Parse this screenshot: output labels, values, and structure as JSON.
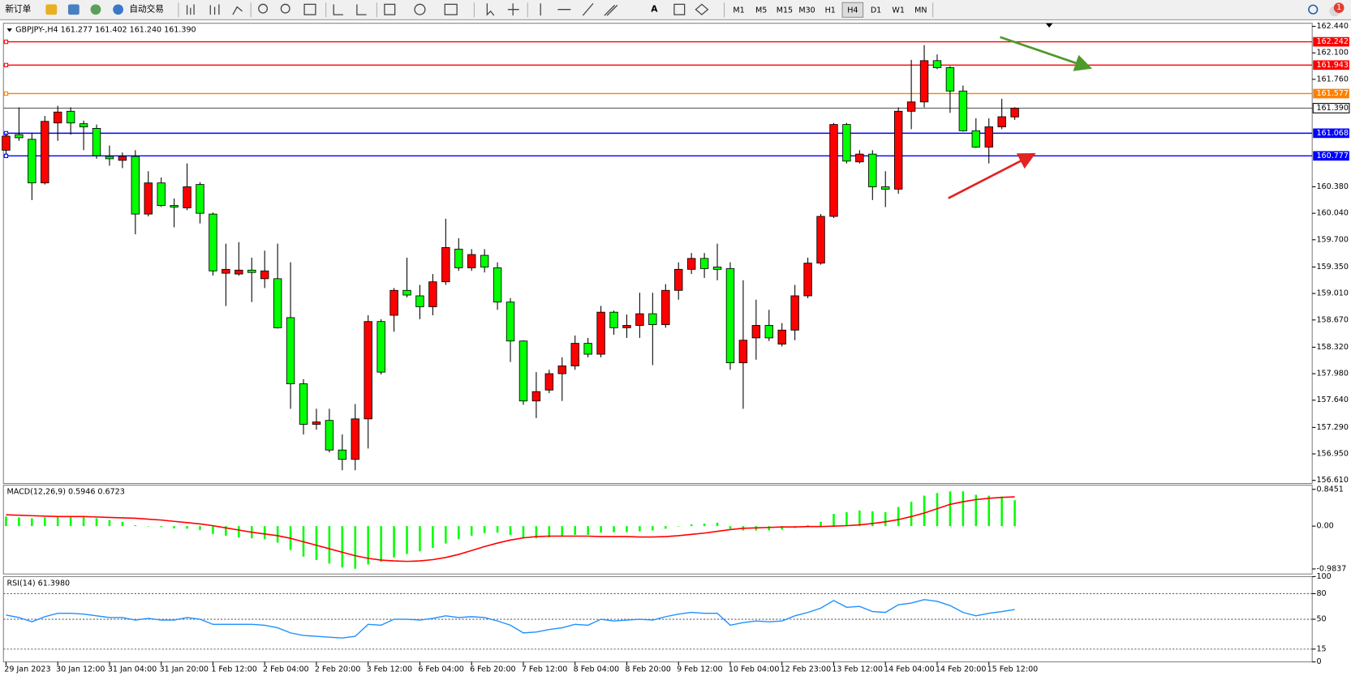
{
  "toolbar": {
    "new_order": "新订单",
    "auto_trading": "自动交易",
    "text_tool": "A",
    "timeframes": [
      "M1",
      "M5",
      "M15",
      "M30",
      "H1",
      "H4",
      "D1",
      "W1",
      "MN"
    ],
    "active_timeframe": "H4",
    "notification": "1"
  },
  "chart_data": [
    {
      "type": "candlestick",
      "header": "GBPJPY-,H4 161.277 161.402 161.240 161.390",
      "categories": [
        "29 Jan 2023",
        null,
        null,
        null,
        "30 Jan 12:00",
        null,
        null,
        null,
        "31 Jan 04:00",
        null,
        null,
        null,
        "31 Jan 20:00",
        null,
        null,
        null,
        "1 Feb 12:00",
        null,
        null,
        null,
        "2 Feb 04:00",
        null,
        null,
        null,
        "2 Feb 20:00",
        null,
        null,
        null,
        "3 Feb 12:00",
        null,
        null,
        null,
        "6 Feb 04:00",
        null,
        null,
        null,
        "6 Feb 20:00",
        null,
        null,
        null,
        "7 Feb 12:00",
        null,
        null,
        null,
        "8 Feb 04:00",
        null,
        null,
        null,
        "8 Feb 20:00",
        null,
        null,
        null,
        "9 Feb 12:00",
        null,
        null,
        null,
        "10 Feb 04:00",
        null,
        null,
        null,
        "12 Feb 23:00",
        null,
        null,
        null,
        "13 Feb 12:00",
        null,
        null,
        null,
        "14 Feb 04:00",
        null,
        null,
        null,
        "14 Feb 20:00",
        null,
        null,
        null,
        "15 Feb 12:00",
        null,
        null
      ],
      "open": [
        160.85,
        161.05,
        160.99,
        160.43,
        161.2,
        161.35,
        161.19,
        161.13,
        160.77,
        160.72,
        160.77,
        160.03,
        160.43,
        160.14,
        160.11,
        160.41,
        160.03,
        159.27,
        159.26,
        159.31,
        159.2,
        159.2,
        158.7,
        157.85,
        157.33,
        157.38,
        157.0,
        156.88,
        157.4,
        158.65,
        158.73,
        159.05,
        158.98,
        158.84,
        159.16,
        159.58,
        159.34,
        159.5,
        159.34,
        158.9,
        158.4,
        157.63,
        157.77,
        157.98,
        158.08,
        158.37,
        158.23,
        158.77,
        158.57,
        158.6,
        158.75,
        158.61,
        159.05,
        159.32,
        159.46,
        159.35,
        159.33,
        158.12,
        158.44,
        158.6,
        158.36,
        158.54,
        158.98,
        159.4,
        160.0,
        161.18,
        160.7,
        160.8,
        160.38,
        160.35,
        161.35,
        161.47,
        162.0,
        161.91,
        161.61,
        161.1,
        160.89,
        161.15,
        161.277
      ],
      "high": [
        161.07,
        161.4,
        161.07,
        161.29,
        161.42,
        161.4,
        161.23,
        161.18,
        160.91,
        160.82,
        160.85,
        160.58,
        160.5,
        160.23,
        160.68,
        160.44,
        160.05,
        159.65,
        159.67,
        159.47,
        159.56,
        159.65,
        159.41,
        157.91,
        157.53,
        157.53,
        157.2,
        157.59,
        158.73,
        158.68,
        159.08,
        159.47,
        159.12,
        159.26,
        159.97,
        159.72,
        159.58,
        159.58,
        159.41,
        158.95,
        158.41,
        158.0,
        158.03,
        158.19,
        158.47,
        158.44,
        158.85,
        158.79,
        158.74,
        159.02,
        159.02,
        159.13,
        159.41,
        159.53,
        159.53,
        159.65,
        159.41,
        159.18,
        158.93,
        158.8,
        158.63,
        159.12,
        159.47,
        160.03,
        161.2,
        161.2,
        160.85,
        160.85,
        160.58,
        161.4,
        162.01,
        162.2,
        162.08,
        161.93,
        161.68,
        161.26,
        161.26,
        161.51,
        161.402
      ],
      "low": [
        160.8,
        160.97,
        160.21,
        160.41,
        160.97,
        161.05,
        160.85,
        160.74,
        160.65,
        160.62,
        159.77,
        160.0,
        160.12,
        159.86,
        160.08,
        159.91,
        159.24,
        158.85,
        159.24,
        158.9,
        159.08,
        158.56,
        157.53,
        157.2,
        157.26,
        156.97,
        156.74,
        156.74,
        157.02,
        157.97,
        158.52,
        158.96,
        158.68,
        158.73,
        159.12,
        159.3,
        159.3,
        159.28,
        158.8,
        158.13,
        157.58,
        157.41,
        157.73,
        157.63,
        158.03,
        158.19,
        158.19,
        158.48,
        158.44,
        158.44,
        158.09,
        158.57,
        158.93,
        159.26,
        159.21,
        159.18,
        158.03,
        157.53,
        158.16,
        158.4,
        158.33,
        158.41,
        158.95,
        159.38,
        159.98,
        160.68,
        160.68,
        160.21,
        160.12,
        160.29,
        161.12,
        161.4,
        161.89,
        161.33,
        161.09,
        160.88,
        160.68,
        161.12,
        161.24
      ],
      "close": [
        161.03,
        161.01,
        160.43,
        161.22,
        161.34,
        161.2,
        161.15,
        160.78,
        160.74,
        160.77,
        160.03,
        160.43,
        160.14,
        160.12,
        160.38,
        160.04,
        159.3,
        159.32,
        159.31,
        159.28,
        159.3,
        158.57,
        157.85,
        157.33,
        157.36,
        157.0,
        156.88,
        157.4,
        158.65,
        158.0,
        159.05,
        158.99,
        158.84,
        159.16,
        159.6,
        159.34,
        159.51,
        159.35,
        158.9,
        158.4,
        157.63,
        157.75,
        157.98,
        158.08,
        158.37,
        158.23,
        158.77,
        158.57,
        158.6,
        158.75,
        158.61,
        159.05,
        159.32,
        159.46,
        159.33,
        159.32,
        158.12,
        158.41,
        158.6,
        158.44,
        158.54,
        158.98,
        159.4,
        160.0,
        161.18,
        160.71,
        160.8,
        160.38,
        160.35,
        161.35,
        161.47,
        162.0,
        161.91,
        161.61,
        161.1,
        160.89,
        161.15,
        161.28,
        161.39
      ],
      "up_color": "#ff0000",
      "down_color": "#00ff00",
      "outline_color": "#000000",
      "ylim": [
        156.57,
        162.48
      ],
      "yticks": [
        {
          "value": 162.44,
          "label": "162.440"
        },
        {
          "value": 162.1,
          "label": "162.100"
        },
        {
          "value": 161.76,
          "label": "161.760"
        },
        {
          "value": 160.38,
          "label": "160.380"
        },
        {
          "value": 160.04,
          "label": "160.040"
        },
        {
          "value": 159.7,
          "label": "159.700"
        },
        {
          "value": 159.35,
          "label": "159.350"
        },
        {
          "value": 159.01,
          "label": "159.010"
        },
        {
          "value": 158.67,
          "label": "158.670"
        },
        {
          "value": 158.32,
          "label": "158.320"
        },
        {
          "value": 157.98,
          "label": "157.980"
        },
        {
          "value": 157.64,
          "label": "157.640"
        },
        {
          "value": 157.29,
          "label": "157.290"
        },
        {
          "value": 156.95,
          "label": "156.950"
        },
        {
          "value": 156.61,
          "label": "156.610"
        }
      ],
      "levels": [
        {
          "value": 162.242,
          "color": "#ff0000"
        },
        {
          "value": 161.943,
          "color": "#ff0000"
        },
        {
          "value": 161.577,
          "color": "#ff8000"
        },
        {
          "value": 161.068,
          "color": "#0000ff"
        },
        {
          "value": 160.777,
          "color": "#0000ff"
        }
      ],
      "last_price": {
        "value": 161.39,
        "label": "161.390"
      }
    },
    {
      "type": "macd",
      "title": "MACD(12,26,9) 0.5946 0.6723",
      "histogram": {
        "color": "#00ff00",
        "values": [
          0.22,
          0.2,
          0.18,
          0.2,
          0.22,
          0.23,
          0.22,
          0.18,
          0.14,
          0.1,
          0.02,
          0.0,
          -0.02,
          -0.05,
          -0.06,
          -0.09,
          -0.18,
          -0.22,
          -0.26,
          -0.28,
          -0.3,
          -0.38,
          -0.55,
          -0.7,
          -0.78,
          -0.86,
          -0.95,
          -0.98,
          -0.88,
          -0.82,
          -0.72,
          -0.64,
          -0.58,
          -0.5,
          -0.4,
          -0.3,
          -0.22,
          -0.16,
          -0.15,
          -0.2,
          -0.28,
          -0.28,
          -0.26,
          -0.24,
          -0.2,
          -0.2,
          -0.15,
          -0.14,
          -0.14,
          -0.12,
          -0.1,
          -0.06,
          0.0,
          0.04,
          0.06,
          0.08,
          -0.06,
          -0.1,
          -0.1,
          -0.1,
          -0.08,
          -0.04,
          0.02,
          0.1,
          0.28,
          0.32,
          0.36,
          0.34,
          0.32,
          0.44,
          0.56,
          0.7,
          0.76,
          0.8,
          0.8,
          0.72,
          0.7,
          0.68,
          0.5946
        ]
      },
      "signal": {
        "color": "#ff0000",
        "values": [
          0.26,
          0.25,
          0.24,
          0.23,
          0.22,
          0.22,
          0.22,
          0.21,
          0.2,
          0.19,
          0.18,
          0.16,
          0.14,
          0.11,
          0.08,
          0.05,
          0.01,
          -0.04,
          -0.09,
          -0.14,
          -0.18,
          -0.22,
          -0.28,
          -0.36,
          -0.44,
          -0.52,
          -0.6,
          -0.68,
          -0.74,
          -0.78,
          -0.8,
          -0.81,
          -0.8,
          -0.77,
          -0.72,
          -0.65,
          -0.56,
          -0.47,
          -0.39,
          -0.32,
          -0.27,
          -0.24,
          -0.23,
          -0.23,
          -0.23,
          -0.23,
          -0.24,
          -0.24,
          -0.24,
          -0.25,
          -0.25,
          -0.24,
          -0.22,
          -0.19,
          -0.16,
          -0.12,
          -0.08,
          -0.05,
          -0.04,
          -0.03,
          -0.02,
          -0.02,
          -0.01,
          -0.01,
          0.0,
          0.01,
          0.03,
          0.06,
          0.1,
          0.15,
          0.22,
          0.3,
          0.4,
          0.5,
          0.56,
          0.61,
          0.64,
          0.66,
          0.6723
        ]
      },
      "ylim": [
        -1.1,
        0.94
      ],
      "yticks": [
        0.8451,
        {
          "value": 0,
          "label": "0.00"
        },
        -0.9837
      ]
    },
    {
      "type": "line",
      "title": "RSI(14) 61.3980",
      "color": "#1e90ff",
      "values": [
        55,
        52,
        47,
        53,
        57,
        57,
        56,
        54,
        52,
        52,
        49,
        51,
        49,
        49,
        52,
        50,
        44,
        44,
        44,
        44,
        43,
        40,
        34,
        31,
        30,
        29,
        28,
        30,
        44,
        43,
        50,
        50,
        49,
        51,
        54,
        52,
        53,
        52,
        48,
        43,
        34,
        35,
        38,
        40,
        44,
        43,
        50,
        48,
        49,
        50,
        49,
        53,
        56,
        58,
        57,
        57,
        43,
        46,
        48,
        47,
        48,
        54,
        58,
        63,
        72,
        64,
        65,
        59,
        58,
        67,
        69,
        73,
        71,
        66,
        58,
        54,
        57,
        59,
        61.398
      ],
      "ylim": [
        0,
        100
      ],
      "yticks": [
        100,
        80,
        50,
        15,
        0
      ],
      "dotted_levels": [
        80,
        50,
        15
      ]
    }
  ]
}
